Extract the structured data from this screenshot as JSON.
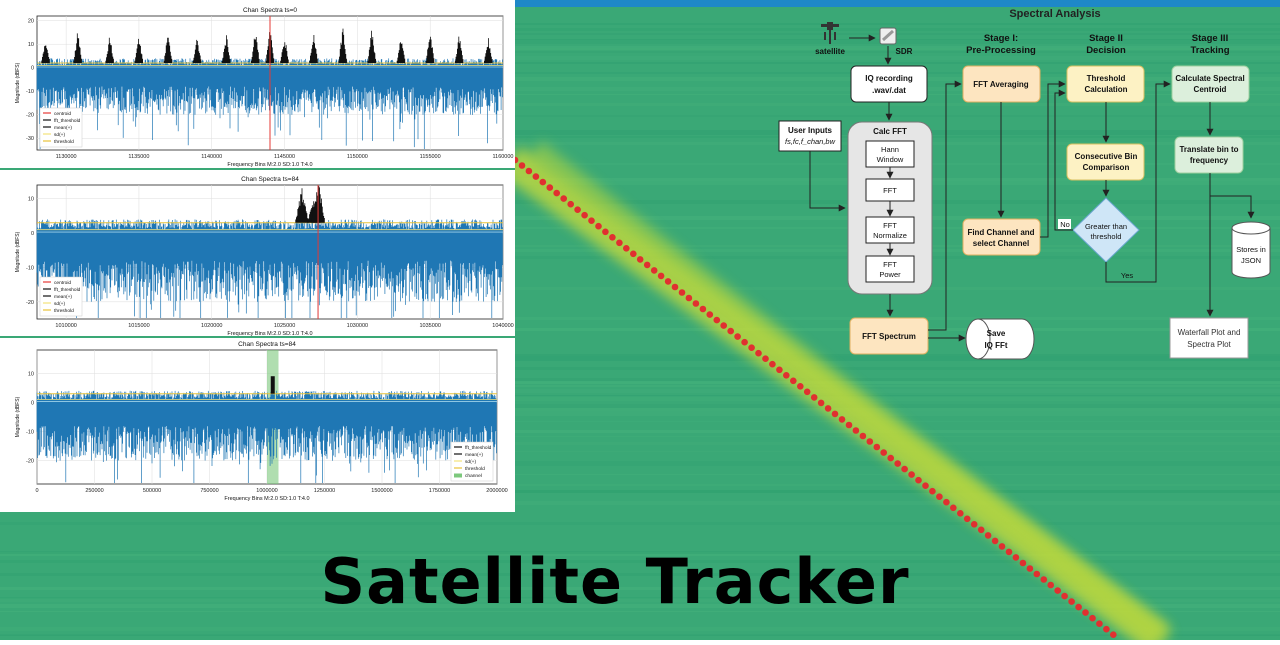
{
  "title": "Satellite Tracker",
  "colors": {
    "waterfall_green": "#3aa876",
    "signal_red": "#e03030",
    "spectrum_blue": "#1f77b4",
    "box_orange": "#fde5c0",
    "box_yellow": "#fdf2c4",
    "box_green": "#dcefdc",
    "diamond_blue": "#cfe6f7"
  },
  "charts": [
    {
      "type": "line",
      "title": "Chan Spectra ts=0",
      "xlabel": "Frequency Bins M:2.0 SD:1.0 T:4.0",
      "ylabel": "Magnitude (dBFS)",
      "xlim": [
        1128000,
        1160000
      ],
      "ylim": [
        -35,
        22
      ],
      "x_ticks": [
        "1130000",
        "1135000",
        "1140000",
        "1145000",
        "1150000",
        "1155000",
        "1160000"
      ],
      "y_ticks": [
        "20",
        "10",
        "0",
        "-10",
        "-20",
        "-30"
      ],
      "legend": [
        "centroid",
        "fft_threshold",
        "mean(+)",
        "sd(+)",
        "threshold"
      ],
      "centroid": 1144000,
      "peaks": [
        1128600,
        1130800,
        1133000,
        1135000,
        1137000,
        1139000,
        1141000,
        1143000,
        1144000,
        1145000,
        1147000,
        1149000,
        1151000,
        1153000,
        1155000,
        1157000,
        1159000
      ]
    },
    {
      "type": "line",
      "title": "Chan Spectra ts=84",
      "xlabel": "Frequency Bins M:2.0 SD:1.0 T:4.0",
      "ylabel": "Magnitude (dBFS)",
      "xlim": [
        1008000,
        1040000
      ],
      "ylim": [
        -25,
        14
      ],
      "x_ticks": [
        "1010000",
        "1015000",
        "1020000",
        "1025000",
        "1030000",
        "1035000",
        "1040000"
      ],
      "y_ticks": [
        "10",
        "0",
        "-10",
        "-20"
      ],
      "legend": [
        "centroid",
        "fft_threshold",
        "mean(+)",
        "sd(+)",
        "threshold"
      ],
      "centroid": 1027300,
      "peaks": [
        1026200,
        1027000,
        1027300
      ]
    },
    {
      "type": "line",
      "title": "Chan Spectra ts=84",
      "xlabel": "Frequency Bins M:2.0 SD:1.0 T:4.0",
      "ylabel": "Magnitude (dBFS)",
      "xlim": [
        0,
        2000000
      ],
      "ylim": [
        -28,
        18
      ],
      "x_ticks": [
        "0",
        "250000",
        "500000",
        "750000",
        "1000000",
        "1250000",
        "1500000",
        "1750000",
        "2000000"
      ],
      "y_ticks": [
        "10",
        "0",
        "-10",
        "-20"
      ],
      "legend": [
        "fft_threshold",
        "mean(+)",
        "sd(+)",
        "threshold",
        "channel"
      ],
      "channel": [
        1000000,
        1050000
      ]
    }
  ],
  "flowchart": {
    "title": "Spectral Analysis",
    "satellite": "satellite",
    "sdr": "SDR",
    "iq_recording": [
      "IQ recording",
      ".wav/.dat"
    ],
    "user_inputs": [
      "User Inputs",
      "fs,fc,f_chan,bw"
    ],
    "calc_fft": "Calc FFT",
    "hann_window": [
      "Hann",
      "Window"
    ],
    "fft": "FFT",
    "fft_normalize": [
      "FFT",
      "Normalize"
    ],
    "fft_power": [
      "FFT",
      "Power"
    ],
    "fft_spectrum": "FFT Spectrum",
    "save_iq": [
      "Save",
      "IQ FFt"
    ],
    "stage1": [
      "Stage I:",
      "Pre-Processing"
    ],
    "stage2": [
      "Stage II",
      "Decision"
    ],
    "stage3": [
      "Stage III",
      "Tracking"
    ],
    "fft_averaging": "FFT Averaging",
    "find_channel": [
      "Find Channel and",
      "select Channel"
    ],
    "threshold_calc": [
      "Threshold",
      "Calculation"
    ],
    "consecutive_bin": [
      "Consecutive Bin",
      "Comparison"
    ],
    "greater_than": [
      "Greater than",
      "threshold"
    ],
    "no": "No",
    "yes": "Yes",
    "calc_centroid": [
      "Calculate Spectral",
      "Centroid"
    ],
    "translate_bin": [
      "Translate bin to",
      "frequency"
    ],
    "stores_json": [
      "Stores in",
      "JSON"
    ],
    "waterfall_plot": [
      "Waterfall Plot and",
      "Spectra Plot"
    ]
  }
}
